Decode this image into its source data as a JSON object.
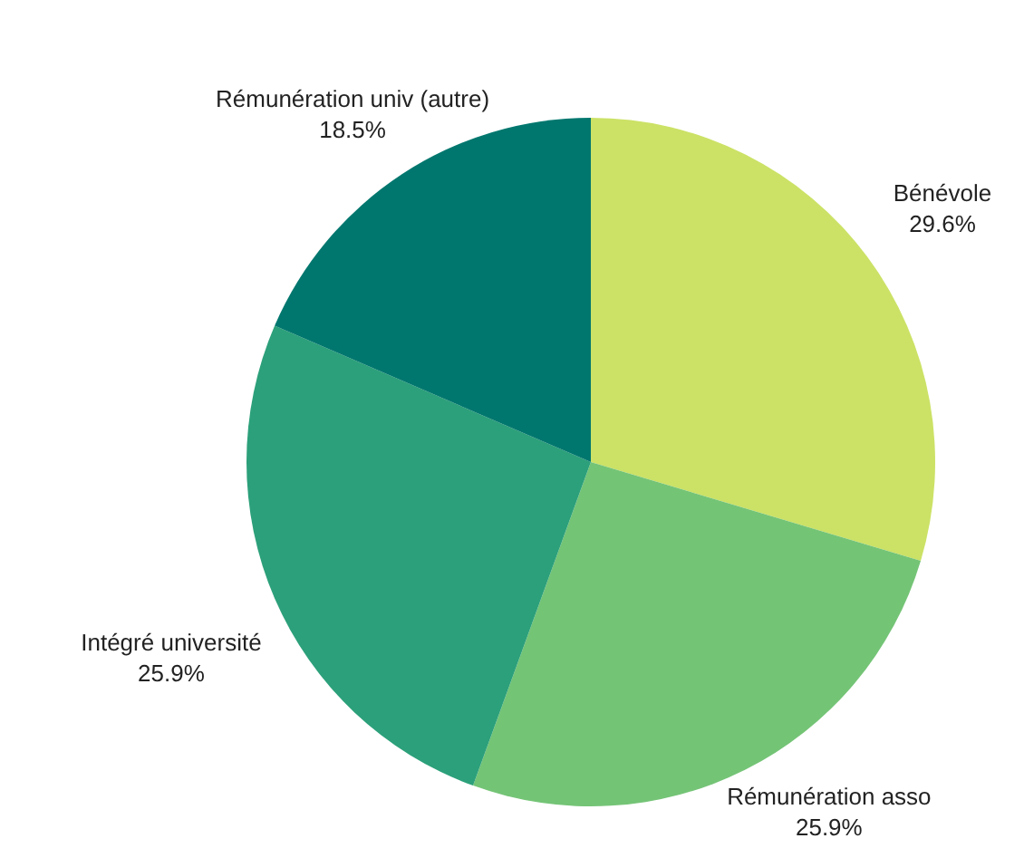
{
  "chart_data": {
    "type": "pie",
    "categories": [
      "Bénévole",
      "Rémunération asso",
      "Intégré université",
      "Rémunération univ (autre)"
    ],
    "values": [
      29.6,
      25.9,
      25.9,
      18.5
    ],
    "value_labels": [
      "29.6%",
      "25.9%",
      "25.9%",
      "18.5%"
    ],
    "colors": [
      "#cbe266",
      "#74c476",
      "#2ca07a",
      "#00776e"
    ]
  }
}
